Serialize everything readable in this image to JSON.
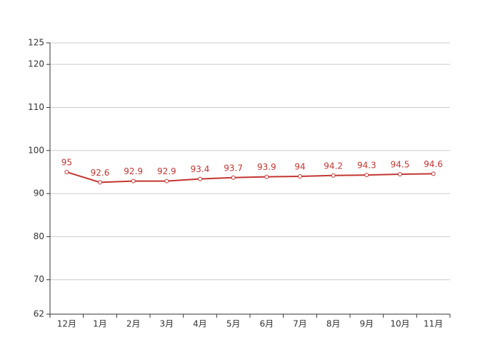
{
  "chart_data": {
    "type": "line",
    "categories": [
      "12月",
      "1月",
      "2月",
      "3月",
      "4月",
      "5月",
      "6月",
      "7月",
      "8月",
      "9月",
      "10月",
      "11月"
    ],
    "series": [
      {
        "color": "#c23531",
        "values": [
          95,
          92.6,
          92.9,
          92.9,
          93.4,
          93.7,
          93.9,
          94,
          94.2,
          94.3,
          94.5,
          94.6
        ]
      }
    ],
    "ylim": [
      62,
      125
    ],
    "yticks": [
      62,
      70,
      80,
      90,
      100,
      110,
      120,
      125
    ],
    "grid": true
  }
}
